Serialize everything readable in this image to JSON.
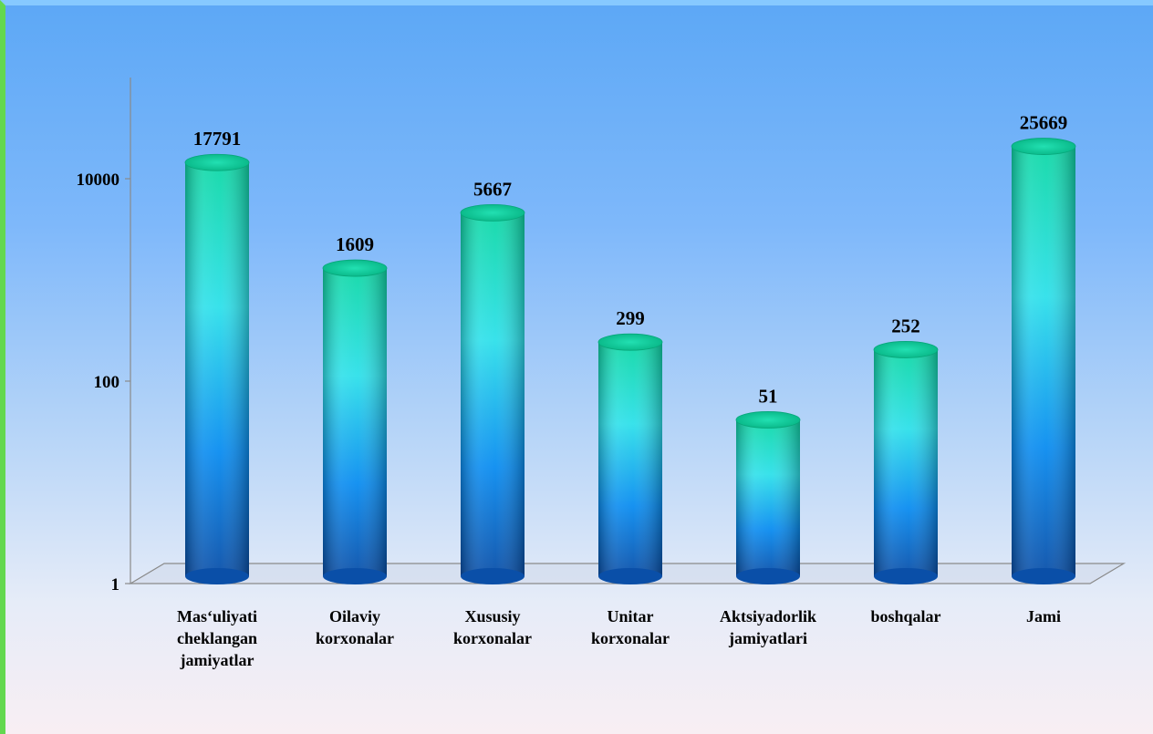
{
  "chart_data": {
    "type": "bar",
    "title": "",
    "xlabel": "",
    "ylabel": "",
    "y_scale": "log",
    "ylim": [
      1,
      100000
    ],
    "y_ticks": [
      "1",
      "100",
      "10000"
    ],
    "categories": [
      [
        "Mas‘uliyati",
        "cheklangan",
        "jamiyatlar"
      ],
      [
        "Oilaviy",
        "korxonalar"
      ],
      [
        "Xususiy",
        "korxonalar"
      ],
      [
        "Unitar",
        "korxonalar"
      ],
      [
        "Aktsiyadorlik",
        "jamiyatlari"
      ],
      [
        "boshqalar"
      ],
      [
        "Jami"
      ]
    ],
    "values": [
      17791,
      1609,
      5667,
      299,
      51,
      252,
      25669
    ],
    "value_labels": [
      "17791",
      "1609",
      "5667",
      "299",
      "51",
      "252",
      "25669"
    ],
    "legend": "none",
    "grid": false,
    "colors": {
      "bar_top": "#0fd8a6",
      "bar_mid": "#2ee0ea",
      "bar_low": "#0a8cf0",
      "bar_bottom": "#0a4fa8",
      "axis": "#8a8a8a"
    }
  }
}
